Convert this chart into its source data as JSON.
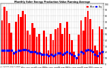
{
  "title": "Monthly Solar Energy Production Value Running Average",
  "bar_values": [
    72,
    95,
    88,
    68,
    52,
    20,
    70,
    82,
    78,
    88,
    82,
    55,
    48,
    68,
    60,
    45,
    50,
    18,
    55,
    45,
    22,
    50,
    40,
    58,
    60,
    68,
    50,
    60,
    70,
    50,
    40,
    20,
    8,
    48,
    72,
    55,
    78,
    88,
    75,
    58,
    30,
    22,
    62,
    58
  ],
  "avg_values": [
    22,
    22,
    22,
    22,
    22,
    18,
    20,
    22,
    22,
    24,
    24,
    22,
    20,
    20,
    20,
    18,
    18,
    16,
    16,
    16,
    14,
    16,
    14,
    16,
    18,
    18,
    16,
    18,
    20,
    18,
    16,
    14,
    10,
    16,
    20,
    18,
    22,
    24,
    22,
    20,
    16,
    14,
    18,
    20
  ],
  "bar_color": "#ff0000",
  "avg_color": "#0000ff",
  "background": "#ffffff",
  "grid_color": "#888888",
  "ylim": [
    0,
    100
  ],
  "yticks": [
    0,
    10,
    20,
    30,
    40,
    50,
    60,
    70,
    80,
    90,
    100
  ],
  "ytick_labels": [
    "0",
    "10",
    "20",
    "30",
    "40",
    "50",
    "60",
    "70",
    "80",
    "90",
    "100"
  ]
}
